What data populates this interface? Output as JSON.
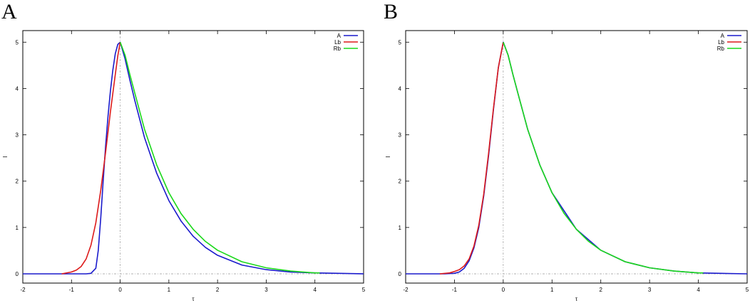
{
  "panels": [
    {
      "letter": "A",
      "chart_data": {
        "type": "line",
        "title": "",
        "xlabel": "τ",
        "ylabel": "I",
        "xlim": [
          -2,
          5
        ],
        "ylim": [
          -0.2,
          5.25
        ],
        "xticks": [
          -2,
          -1,
          0,
          1,
          2,
          3,
          4,
          5
        ],
        "yticks": [
          0,
          1,
          2,
          3,
          4,
          5
        ],
        "legend_position": "top-right",
        "series": [
          {
            "name": "A",
            "color": "#1a1acc",
            "x": [
              -2,
              -0.9,
              -0.7,
              -0.6,
              -0.5,
              -0.45,
              -0.4,
              -0.35,
              -0.3,
              -0.25,
              -0.2,
              -0.15,
              -0.1,
              -0.05,
              0,
              0.1,
              0.2,
              0.3,
              0.5,
              0.75,
              1,
              1.25,
              1.5,
              1.75,
              2,
              2.5,
              3,
              3.5,
              4,
              5
            ],
            "y": [
              0,
              0,
              0,
              0.01,
              0.12,
              0.5,
              1.2,
              2.0,
              2.75,
              3.4,
              3.95,
              4.4,
              4.75,
              4.95,
              5.0,
              4.64,
              4.18,
              3.74,
              2.94,
              2.17,
              1.58,
              1.14,
              0.81,
              0.57,
              0.4,
              0.19,
              0.09,
              0.04,
              0.02,
              0
            ]
          },
          {
            "name": "Lb",
            "color": "#dd1a1a",
            "x": [
              -1.2,
              -1.0,
              -0.9,
              -0.8,
              -0.7,
              -0.6,
              -0.5,
              -0.4,
              -0.3,
              -0.2,
              -0.1,
              -0.05,
              0
            ],
            "y": [
              0,
              0.04,
              0.08,
              0.16,
              0.32,
              0.62,
              1.1,
              1.8,
              2.62,
              3.5,
              4.3,
              4.7,
              5.0
            ]
          },
          {
            "name": "Rb",
            "color": "#1ad81a",
            "x": [
              0,
              0.1,
              0.2,
              0.3,
              0.5,
              0.75,
              1,
              1.25,
              1.5,
              1.75,
              2,
              2.5,
              3,
              3.5,
              4,
              4.1
            ],
            "y": [
              5.0,
              4.72,
              4.3,
              3.9,
              3.12,
              2.35,
              1.75,
              1.3,
              0.96,
              0.7,
              0.51,
              0.26,
              0.13,
              0.06,
              0.02,
              0.02
            ]
          }
        ]
      }
    },
    {
      "letter": "B",
      "chart_data": {
        "type": "line",
        "title": "",
        "xlabel": "τ",
        "ylabel": "I",
        "xlim": [
          -2,
          5
        ],
        "ylim": [
          -0.2,
          5.25
        ],
        "xticks": [
          -2,
          -1,
          0,
          1,
          2,
          3,
          4,
          5
        ],
        "yticks": [
          0,
          1,
          2,
          3,
          4,
          5
        ],
        "legend_position": "top-right",
        "series": [
          {
            "name": "A",
            "color": "#1a1acc",
            "x": [
              -2,
              -1.2,
              -1.0,
              -0.9,
              -0.8,
              -0.7,
              -0.6,
              -0.5,
              -0.4,
              -0.3,
              -0.2,
              -0.1,
              0,
              0.1,
              0.2,
              0.3,
              0.5,
              0.75,
              1,
              1.5,
              2,
              2.5,
              3,
              3.5,
              4,
              5
            ],
            "y": [
              0,
              0,
              0.01,
              0.04,
              0.12,
              0.28,
              0.56,
              1.0,
              1.68,
              2.55,
              3.55,
              4.45,
              5.0,
              4.72,
              4.3,
              3.9,
              3.12,
              2.35,
              1.75,
              0.96,
              0.51,
              0.26,
              0.13,
              0.06,
              0.02,
              0
            ]
          },
          {
            "name": "Lb",
            "color": "#dd1a1a",
            "x": [
              -1.3,
              -1.1,
              -1.0,
              -0.9,
              -0.8,
              -0.7,
              -0.6,
              -0.5,
              -0.4,
              -0.3,
              -0.2,
              -0.1,
              0
            ],
            "y": [
              0,
              0.02,
              0.05,
              0.09,
              0.17,
              0.32,
              0.6,
              1.05,
              1.72,
              2.6,
              3.58,
              4.45,
              5.0
            ]
          },
          {
            "name": "Rb",
            "color": "#1ad81a",
            "x": [
              0,
              0.1,
              0.2,
              0.3,
              0.5,
              0.75,
              1,
              1.25,
              1.5,
              1.75,
              2,
              2.5,
              3,
              3.5,
              4,
              4.1
            ],
            "y": [
              5.0,
              4.72,
              4.3,
              3.9,
              3.12,
              2.35,
              1.75,
              1.3,
              0.96,
              0.7,
              0.51,
              0.26,
              0.13,
              0.06,
              0.02,
              0.02
            ]
          }
        ]
      }
    }
  ]
}
